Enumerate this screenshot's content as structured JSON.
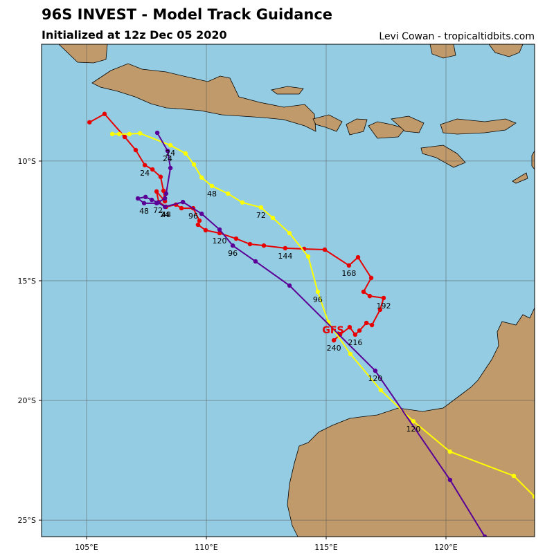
{
  "chart_data": {
    "type": "track-map",
    "title": "96S INVEST - Model Track Guidance",
    "subtitle": "Initialized at 12z Dec 05 2020",
    "credit": "Levi Cowan - tropicaltidbits.com",
    "annotation": "GFS",
    "annotation_color": "#e60000",
    "xlim": [
      103.12,
      123.7
    ],
    "ylim": [
      -25.69,
      -5.12
    ],
    "xticks": [
      {
        "value": 105,
        "label": "105°E"
      },
      {
        "value": 110,
        "label": "110°E"
      },
      {
        "value": 115,
        "label": "115°E"
      },
      {
        "value": 120,
        "label": "120°E"
      }
    ],
    "yticks": [
      {
        "value": -10,
        "label": "10°S"
      },
      {
        "value": -15,
        "label": "15°S"
      },
      {
        "value": -20,
        "label": "20°S"
      },
      {
        "value": -25,
        "label": "25°S"
      }
    ],
    "grid": true,
    "series": [
      {
        "color": "#e60000",
        "x": [
          105.12,
          105.75,
          106.59,
          107.05,
          107.43,
          107.75,
          108.09,
          108.21,
          108.27,
          107.92,
          108.01,
          108.32,
          108.73,
          108.96,
          109.45,
          109.71,
          109.65,
          109.97,
          110.55,
          111.24,
          111.82,
          112.4,
          113.29,
          114.08,
          114.94,
          115.95,
          116.33,
          116.88,
          116.56,
          116.82,
          117.4,
          117.25,
          116.91,
          116.68,
          116.39,
          116.21,
          115.98,
          115.58,
          115.32
        ],
        "y": [
          -8.38,
          -8.03,
          -8.99,
          -9.54,
          -10.17,
          -10.35,
          -10.66,
          -11.24,
          -11.68,
          -11.27,
          -11.71,
          -11.91,
          -11.82,
          -11.97,
          -11.97,
          -12.49,
          -12.66,
          -12.89,
          -13.01,
          -13.24,
          -13.47,
          -13.53,
          -13.64,
          -13.67,
          -13.7,
          -14.36,
          -14.02,
          -14.88,
          -15.46,
          -15.64,
          -15.72,
          -16.21,
          -16.85,
          -16.76,
          -17.08,
          -17.25,
          -16.94,
          -17.25,
          -17.49
        ],
        "point_labels": [
          null,
          null,
          null,
          null,
          "24",
          null,
          null,
          null,
          null,
          null,
          null,
          "48",
          null,
          null,
          "96",
          null,
          null,
          null,
          "120",
          null,
          null,
          null,
          "144",
          null,
          null,
          "168",
          null,
          null,
          null,
          null,
          "192",
          null,
          null,
          null,
          null,
          "216",
          null,
          null,
          "240"
        ]
      },
      {
        "color": "#ffff00",
        "x": [
          106.07,
          106.36,
          106.79,
          107.23,
          108.5,
          109.13,
          109.48,
          109.8,
          110.23,
          110.9,
          111.5,
          112.28,
          112.77,
          113.47,
          114.25,
          114.65,
          115.09,
          116.01,
          117.28,
          118.64,
          120.17,
          122.83,
          123.7
        ],
        "y": [
          -8.87,
          -8.87,
          -8.87,
          -8.84,
          -9.34,
          -9.68,
          -10.14,
          -10.69,
          -11.04,
          -11.36,
          -11.73,
          -11.94,
          -12.37,
          -13.01,
          -13.99,
          -15.46,
          -16.73,
          -18.06,
          -19.57,
          -20.87,
          -22.14,
          -23.15,
          -24.02
        ],
        "point_labels": [
          null,
          null,
          null,
          null,
          "24",
          null,
          null,
          null,
          "48",
          null,
          null,
          "72",
          null,
          null,
          null,
          "96",
          null,
          null,
          null,
          "120",
          null,
          null,
          null
        ]
      },
      {
        "color": "#5a0096",
        "x": [
          107.95,
          108.38,
          108.5,
          108.32,
          108.27,
          107.92,
          107.4,
          107.14,
          107.46,
          107.72,
          107.98,
          108.27,
          109.02,
          109.8,
          110.55,
          111.1,
          112.05,
          113.47,
          117.05,
          120.17,
          121.62
        ],
        "y": [
          -8.82,
          -9.57,
          -10.29,
          -11.36,
          -11.56,
          -11.76,
          -11.76,
          -11.56,
          -11.5,
          -11.62,
          -11.73,
          -11.91,
          -11.71,
          -12.2,
          -12.86,
          -13.53,
          -14.19,
          -15.2,
          -18.76,
          -23.32,
          -25.69
        ],
        "point_labels": [
          null,
          "24",
          null,
          null,
          null,
          null,
          "48",
          null,
          null,
          null,
          "72",
          "24",
          null,
          null,
          null,
          "96",
          null,
          null,
          "120",
          null,
          null
        ]
      }
    ]
  }
}
